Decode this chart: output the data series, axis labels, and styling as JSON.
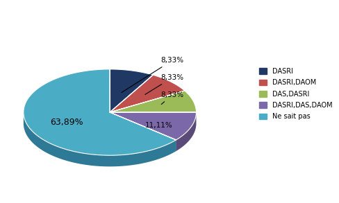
{
  "labels": [
    "DASRI",
    "DASRI,DAOM",
    "DAS,DASRI",
    "DASRI,DAS,DAOM",
    "Ne sait pas"
  ],
  "values": [
    8.33,
    8.33,
    8.33,
    11.11,
    63.89
  ],
  "colors": [
    "#1F3864",
    "#C0504D",
    "#9BBB59",
    "#7B68A8",
    "#4BACC6"
  ],
  "shadow_colors": [
    "#152644",
    "#8B2525",
    "#6B8535",
    "#5A4A78",
    "#2E7A96"
  ],
  "pct_labels": [
    "8,33%",
    "8,33%",
    "8,33%",
    "11,11%",
    "63,89%"
  ],
  "startangle": 90,
  "background_color": "#FFFFFF",
  "depth": 0.13,
  "yscale": 0.5
}
